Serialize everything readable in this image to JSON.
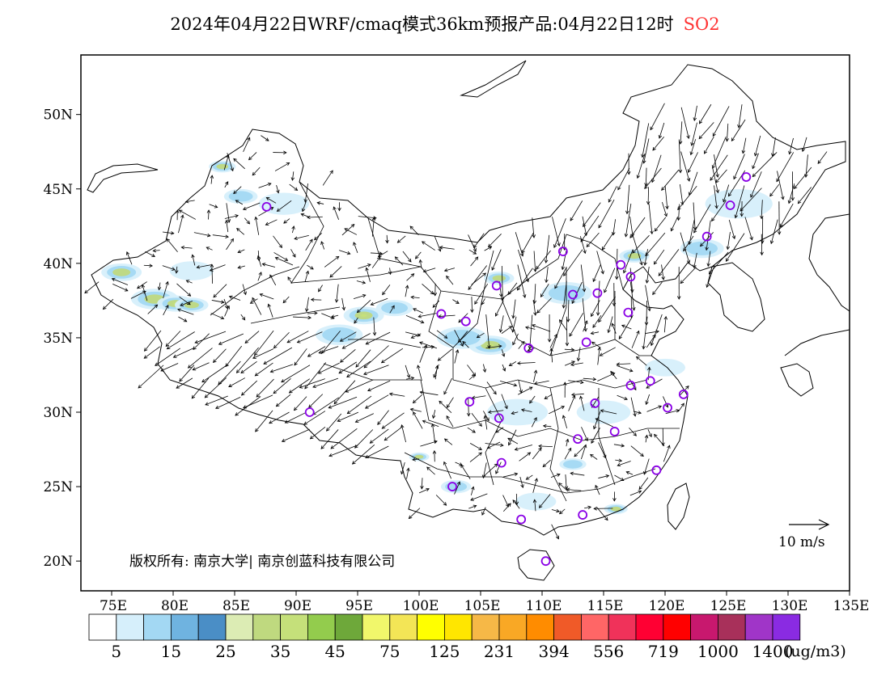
{
  "title": {
    "text": "2024年04月22日WRF/cmaq模式36km预报产品:04月22日12时",
    "pollutant": "SO2",
    "pollutant_color": "#ff3333"
  },
  "axes": {
    "lat_labels": [
      "50N",
      "45N",
      "40N",
      "35N",
      "30N",
      "25N",
      "20N"
    ],
    "lat_values": [
      50,
      45,
      40,
      35,
      30,
      25,
      20
    ],
    "lon_labels": [
      "75E",
      "80E",
      "85E",
      "90E",
      "95E",
      "100E",
      "105E",
      "110E",
      "115E",
      "120E",
      "125E",
      "130E",
      "135E"
    ],
    "lon_values": [
      75,
      80,
      85,
      90,
      95,
      100,
      105,
      110,
      115,
      120,
      125,
      130,
      135
    ],
    "lon_range": [
      72.5,
      135
    ],
    "lat_range": [
      18,
      54
    ]
  },
  "copyright": "版权所有: 南京大学| 南京创蓝科技有限公司",
  "wind_scale": {
    "label": "10 m/s"
  },
  "colorbar": {
    "unit": "(ug/m3)",
    "colors": [
      "#ffffff",
      "#d6effb",
      "#a3d8f3",
      "#6fb3e0",
      "#4a8ec6",
      "#dcecb4",
      "#bfd97f",
      "#c5e07a",
      "#93cc4d",
      "#6ea83a",
      "#f1f76b",
      "#f3e556",
      "#ffff00",
      "#ffe600",
      "#f6b847",
      "#f9a825",
      "#ff8c00",
      "#f05a28",
      "#ff6666",
      "#f0325a",
      "#ff0033",
      "#ff0000",
      "#c8186e",
      "#a8305a",
      "#a035c8",
      "#8a2be2"
    ],
    "labels": [
      "5",
      "15",
      "25",
      "35",
      "45",
      "75",
      "125",
      "231",
      "394",
      "556",
      "719",
      "1000",
      "1400"
    ]
  },
  "stations": [
    [
      87.6,
      43.8
    ],
    [
      91.1,
      30.0
    ],
    [
      101.8,
      36.6
    ],
    [
      103.8,
      36.1
    ],
    [
      106.3,
      38.5
    ],
    [
      104.1,
      30.7
    ],
    [
      106.5,
      29.6
    ],
    [
      106.7,
      26.6
    ],
    [
      102.7,
      25.0
    ],
    [
      108.3,
      22.8
    ],
    [
      110.3,
      20.0
    ],
    [
      113.3,
      23.1
    ],
    [
      112.9,
      28.2
    ],
    [
      115.9,
      28.7
    ],
    [
      114.3,
      30.6
    ],
    [
      117.2,
      31.8
    ],
    [
      118.8,
      32.1
    ],
    [
      120.2,
      30.3
    ],
    [
      121.5,
      31.2
    ],
    [
      119.3,
      26.1
    ],
    [
      113.6,
      34.7
    ],
    [
      108.9,
      34.3
    ],
    [
      112.5,
      37.9
    ],
    [
      114.5,
      38.0
    ],
    [
      111.7,
      40.8
    ],
    [
      116.4,
      39.9
    ],
    [
      117.2,
      39.1
    ],
    [
      117.0,
      36.7
    ],
    [
      123.4,
      41.8
    ],
    [
      125.3,
      43.9
    ],
    [
      126.6,
      45.8
    ]
  ],
  "so2_patches": [
    {
      "lon": 75.8,
      "lat": 39.4,
      "level": 3,
      "size": 1.2
    },
    {
      "lon": 78.5,
      "lat": 37.6,
      "level": 3,
      "size": 1.4
    },
    {
      "lon": 80.2,
      "lat": 37.3,
      "level": 4,
      "size": 1.1
    },
    {
      "lon": 81.5,
      "lat": 37.2,
      "level": 3,
      "size": 1.0
    },
    {
      "lon": 84.0,
      "lat": 46.5,
      "level": 3,
      "size": 0.8
    },
    {
      "lon": 85.5,
      "lat": 44.5,
      "level": 2,
      "size": 1.0
    },
    {
      "lon": 95.5,
      "lat": 36.5,
      "level": 4,
      "size": 1.2
    },
    {
      "lon": 93.5,
      "lat": 35.2,
      "level": 2,
      "size": 1.4
    },
    {
      "lon": 98.0,
      "lat": 37.0,
      "level": 2,
      "size": 1.1
    },
    {
      "lon": 105.8,
      "lat": 34.5,
      "level": 4,
      "size": 1.3
    },
    {
      "lon": 103.5,
      "lat": 35.0,
      "level": 2,
      "size": 1.5
    },
    {
      "lon": 106.5,
      "lat": 39.0,
      "level": 3,
      "size": 0.9
    },
    {
      "lon": 112.0,
      "lat": 38.0,
      "level": 2,
      "size": 1.5
    },
    {
      "lon": 117.5,
      "lat": 40.5,
      "level": 3,
      "size": 0.9
    },
    {
      "lon": 123.0,
      "lat": 41.0,
      "level": 2,
      "size": 1.3
    },
    {
      "lon": 126.0,
      "lat": 44.0,
      "level": 1,
      "size": 2.0
    },
    {
      "lon": 100.0,
      "lat": 27.0,
      "level": 4,
      "size": 0.6
    },
    {
      "lon": 112.5,
      "lat": 26.5,
      "level": 2,
      "size": 0.8
    },
    {
      "lon": 116.0,
      "lat": 23.5,
      "level": 3,
      "size": 0.7
    },
    {
      "lon": 103.0,
      "lat": 25.0,
      "level": 2,
      "size": 0.9
    },
    {
      "lon": 108.0,
      "lat": 30.0,
      "level": 1,
      "size": 1.8
    },
    {
      "lon": 115.0,
      "lat": 30.0,
      "level": 1,
      "size": 1.6
    },
    {
      "lon": 109.5,
      "lat": 24.0,
      "level": 1,
      "size": 1.2
    },
    {
      "lon": 120.0,
      "lat": 33.0,
      "level": 1,
      "size": 1.2
    },
    {
      "lon": 89.0,
      "lat": 44.0,
      "level": 1,
      "size": 1.5
    },
    {
      "lon": 81.5,
      "lat": 39.5,
      "level": 1,
      "size": 1.3
    }
  ]
}
